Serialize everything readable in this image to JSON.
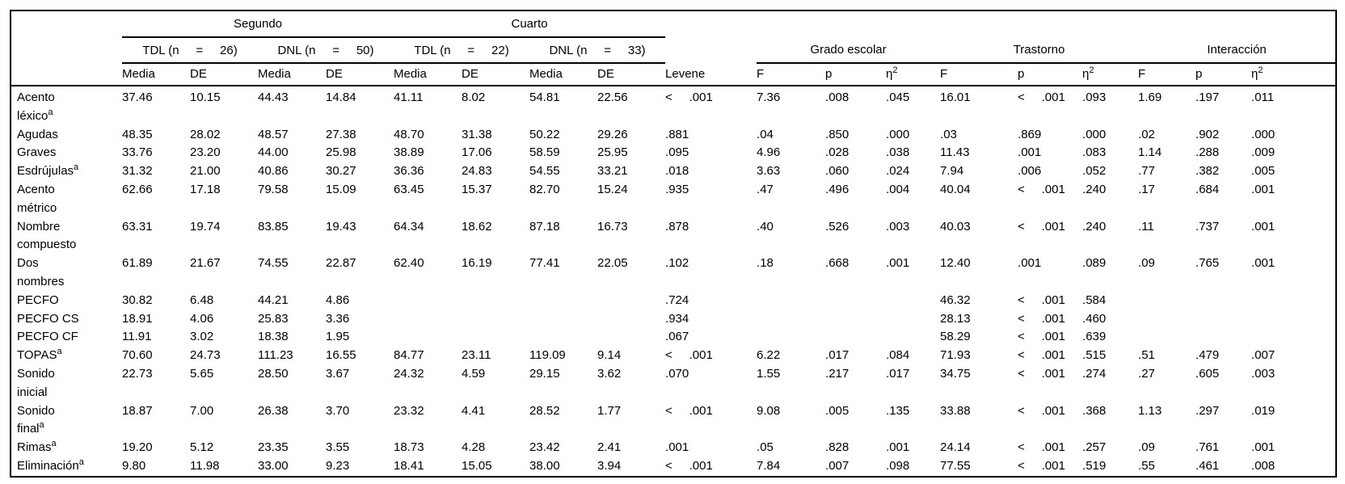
{
  "page": {
    "background_color": "#ffffff",
    "text_color": "#000000",
    "rule_color": "#000000"
  },
  "table": {
    "top_spanners": [
      {
        "label": "Segundo"
      },
      {
        "label": "Cuarto"
      }
    ],
    "group_spanners": [
      {
        "label": "TDL (n     =     26)"
      },
      {
        "label": "DNL (n     =     50)"
      },
      {
        "label": "TDL (n     =     22)"
      },
      {
        "label": "DNL (n     =     33)"
      }
    ],
    "anova_spanners": [
      {
        "label": "Grado escolar"
      },
      {
        "label": "Trastorno"
      },
      {
        "label": "Interacción"
      }
    ],
    "column_headers": [
      {
        "label": "Media"
      },
      {
        "label": "DE"
      },
      {
        "label": "Media"
      },
      {
        "label": "DE"
      },
      {
        "label": "Media"
      },
      {
        "label": "DE"
      },
      {
        "label": "Media"
      },
      {
        "label": "DE"
      },
      {
        "label": "Levene"
      },
      {
        "label": "F"
      },
      {
        "label": "p"
      },
      {
        "label": "η",
        "sup": "2"
      },
      {
        "label": "F"
      },
      {
        "label": "p"
      },
      {
        "label": "η",
        "sup": "2"
      },
      {
        "label": "F"
      },
      {
        "label": "p"
      },
      {
        "label": "η",
        "sup": "2"
      }
    ],
    "rows": [
      {
        "label_lines": [
          "Acento",
          "léxico"
        ],
        "sup": "a",
        "values": [
          "37.46",
          "10.15",
          "44.43",
          "14.84",
          "41.11",
          "8.02",
          "54.81",
          "22.56",
          "<     .001",
          "7.36",
          ".008",
          ".045",
          "16.01",
          "<     .001",
          ".093",
          "1.69",
          ".197",
          ".011"
        ]
      },
      {
        "label_lines": [
          "Agudas"
        ],
        "values": [
          "48.35",
          "28.02",
          "48.57",
          "27.38",
          "48.70",
          "31.38",
          "50.22",
          "29.26",
          ".881",
          ".04",
          ".850",
          ".000",
          ".03",
          ".869",
          ".000",
          ".02",
          ".902",
          ".000"
        ]
      },
      {
        "label_lines": [
          "Graves"
        ],
        "values": [
          "33.76",
          "23.20",
          "44.00",
          "25.98",
          "38.89",
          "17.06",
          "58.59",
          "25.95",
          ".095",
          "4.96",
          ".028",
          ".038",
          "11.43",
          ".001",
          ".083",
          "1.14",
          ".288",
          ".009"
        ]
      },
      {
        "label_lines": [
          "Esdrújulas"
        ],
        "sup": "a",
        "values": [
          "31.32",
          "21.00",
          "40.86",
          "30.27",
          "36.36",
          "24.83",
          "54.55",
          "33.21",
          ".018",
          "3.63",
          ".060",
          ".024",
          "7.94",
          ".006",
          ".052",
          ".77",
          ".382",
          ".005"
        ]
      },
      {
        "label_lines": [
          "Acento",
          "métrico"
        ],
        "values": [
          "62.66",
          "17.18",
          "79.58",
          "15.09",
          "63.45",
          "15.37",
          "82.70",
          "15.24",
          ".935",
          ".47",
          ".496",
          ".004",
          "40.04",
          "<     .001",
          ".240",
          ".17",
          ".684",
          ".001"
        ]
      },
      {
        "label_lines": [
          "Nombre",
          "compuesto"
        ],
        "values": [
          "63.31",
          "19.74",
          "83.85",
          "19.43",
          "64.34",
          "18.62",
          "87.18",
          "16.73",
          ".878",
          ".40",
          ".526",
          ".003",
          "40.03",
          "<     .001",
          ".240",
          ".11",
          ".737",
          ".001"
        ]
      },
      {
        "label_lines": [
          "Dos",
          "nombres"
        ],
        "values": [
          "61.89",
          "21.67",
          "74.55",
          "22.87",
          "62.40",
          "16.19",
          "77.41",
          "22.05",
          ".102",
          ".18",
          ".668",
          ".001",
          "12.40",
          ".001",
          ".089",
          ".09",
          ".765",
          ".001"
        ]
      },
      {
        "label_lines": [
          "PECFO"
        ],
        "values": [
          "30.82",
          "6.48",
          "44.21",
          "4.86",
          "",
          "",
          "",
          "",
          ".724",
          "",
          "",
          "",
          "46.32",
          "<     .001",
          ".584",
          "",
          "",
          ""
        ]
      },
      {
        "label_lines": [
          "PECFO CS"
        ],
        "values": [
          "18.91",
          "4.06",
          "25.83",
          "3.36",
          "",
          "",
          "",
          "",
          ".934",
          "",
          "",
          "",
          "28.13",
          "<     .001",
          ".460",
          "",
          "",
          ""
        ]
      },
      {
        "label_lines": [
          "PECFO CF"
        ],
        "values": [
          "11.91",
          "3.02",
          "18.38",
          "1.95",
          "",
          "",
          "",
          "",
          ".067",
          "",
          "",
          "",
          "58.29",
          "<     .001",
          ".639",
          "",
          "",
          ""
        ]
      },
      {
        "label_lines": [
          "TOPAS"
        ],
        "sup": "a",
        "values": [
          "70.60",
          "24.73",
          "111.23",
          "16.55",
          "84.77",
          "23.11",
          "119.09",
          "9.14",
          "<     .001",
          "6.22",
          ".017",
          ".084",
          "71.93",
          "<     .001",
          ".515",
          ".51",
          ".479",
          ".007"
        ]
      },
      {
        "label_lines": [
          "Sonido",
          "inicial"
        ],
        "values": [
          "22.73",
          "5.65",
          "28.50",
          "3.67",
          "24.32",
          "4.59",
          "29.15",
          "3.62",
          ".070",
          "1.55",
          ".217",
          ".017",
          "34.75",
          "<     .001",
          ".274",
          ".27",
          ".605",
          ".003"
        ]
      },
      {
        "label_lines": [
          "Sonido",
          "final"
        ],
        "sup": "a",
        "values": [
          "18.87",
          "7.00",
          "26.38",
          "3.70",
          "23.32",
          "4.41",
          "28.52",
          "1.77",
          "<     .001",
          "9.08",
          ".005",
          ".135",
          "33.88",
          "<     .001",
          ".368",
          "1.13",
          ".297",
          ".019"
        ]
      },
      {
        "label_lines": [
          "Rimas"
        ],
        "sup": "a",
        "values": [
          "19.20",
          "5.12",
          "23.35",
          "3.55",
          "18.73",
          "4.28",
          "23.42",
          "2.41",
          ".001",
          ".05",
          ".828",
          ".001",
          "24.14",
          "<     .001",
          ".257",
          ".09",
          ".761",
          ".001"
        ]
      },
      {
        "label_lines": [
          "Eliminación"
        ],
        "sup": "a",
        "values": [
          "9.80",
          "11.98",
          "33.00",
          "9.23",
          "18.41",
          "15.05",
          "38.00",
          "3.94",
          "<     .001",
          "7.84",
          ".007",
          ".098",
          "77.55",
          "<     .001",
          ".519",
          ".55",
          ".461",
          ".008"
        ]
      }
    ]
  }
}
